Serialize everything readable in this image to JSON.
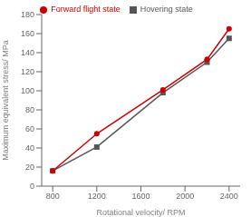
{
  "chart_data": {
    "type": "line",
    "x": [
      800,
      1200,
      1800,
      2200,
      2400
    ],
    "series": [
      {
        "name": "Hovering state",
        "color": "#555555",
        "marker": "square",
        "values": [
          16,
          41,
          98,
          130,
          155
        ]
      },
      {
        "name": "Forward flight state",
        "color": "#cc0000",
        "marker": "circle",
        "values": [
          16,
          55,
          101,
          133,
          165
        ]
      }
    ],
    "xlabel": "Rotational velocity/ RPM",
    "ylabel": "Maximum equivalent stress/ MPa",
    "xlim": [
      700,
      2500
    ],
    "ylim": [
      0,
      180
    ],
    "xticks": [
      800,
      1200,
      1600,
      2000,
      2400
    ],
    "yticks": [
      0,
      20,
      40,
      60,
      80,
      100,
      120,
      140,
      160,
      180
    ],
    "grid": false,
    "legend": "top"
  }
}
